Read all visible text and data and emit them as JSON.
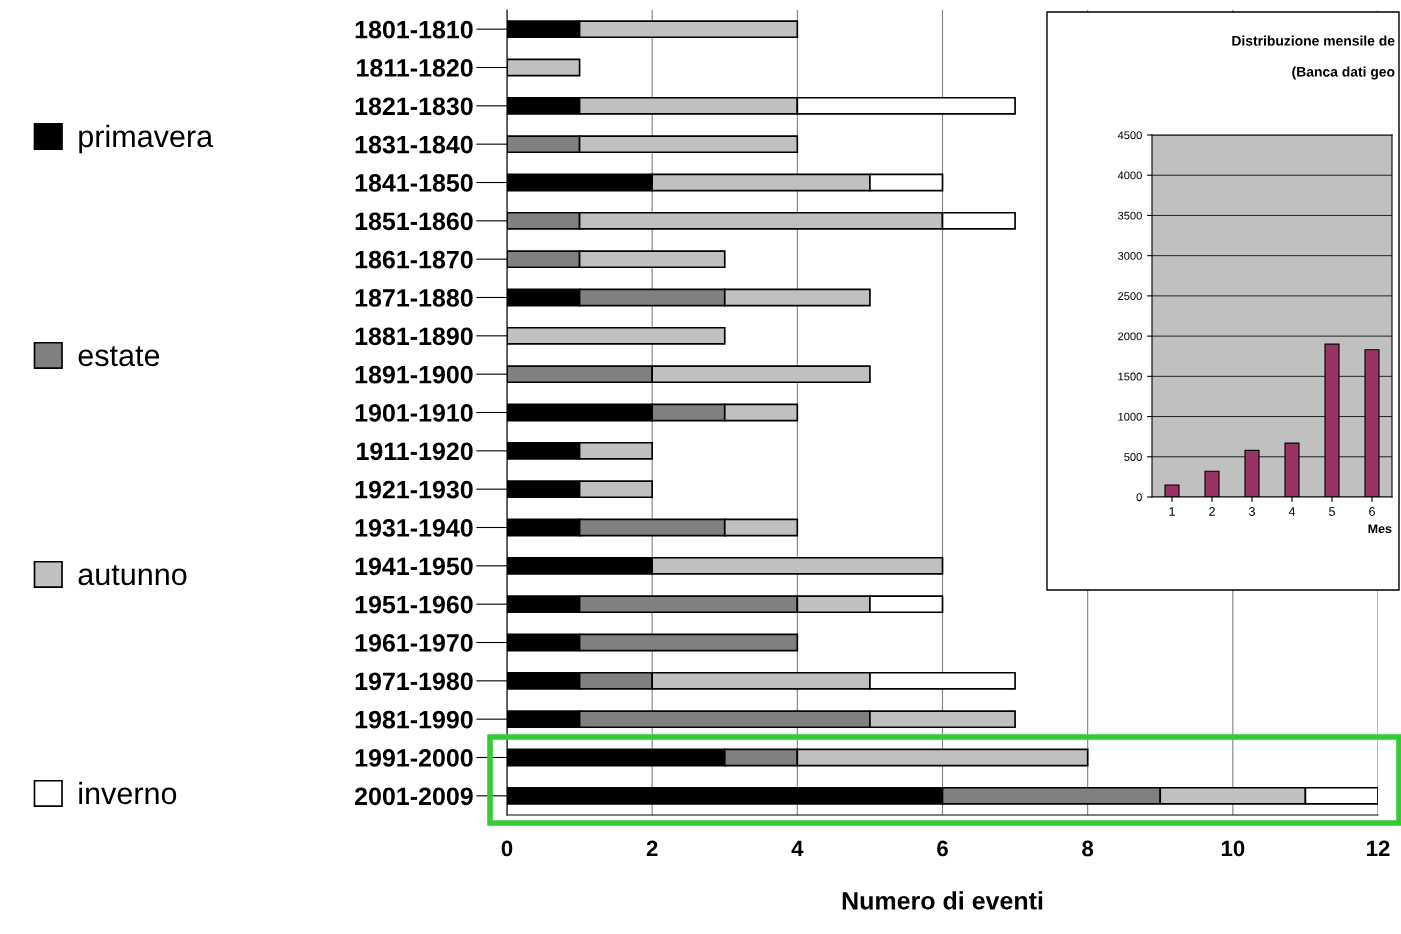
{
  "chart_data": [
    {
      "type": "bar",
      "orientation": "horizontal",
      "stacked": true,
      "xlabel": "Numero di eventi",
      "categories": [
        "1801-1810",
        "1811-1820",
        "1821-1830",
        "1831-1840",
        "1841-1850",
        "1851-1860",
        "1861-1870",
        "1871-1880",
        "1881-1890",
        "1891-1900",
        "1901-1910",
        "1911-1920",
        "1921-1930",
        "1931-1940",
        "1941-1950",
        "1951-1960",
        "1961-1970",
        "1971-1980",
        "1981-1990",
        "1991-2000",
        "2001-2009"
      ],
      "series": [
        {
          "name": "primavera",
          "color": "#000000",
          "values": [
            1,
            0,
            1,
            0,
            2,
            0,
            0,
            1,
            0,
            0,
            2,
            1,
            1,
            1,
            2,
            1,
            1,
            1,
            1,
            3,
            6
          ]
        },
        {
          "name": "estate",
          "color": "#808080",
          "values": [
            0,
            0,
            0,
            1,
            0,
            1,
            1,
            2,
            0,
            2,
            1,
            0,
            0,
            2,
            0,
            3,
            3,
            1,
            4,
            1,
            3
          ]
        },
        {
          "name": "autunno",
          "color": "#c0c0c0",
          "values": [
            3,
            1,
            3,
            3,
            3,
            5,
            2,
            2,
            3,
            3,
            1,
            1,
            1,
            1,
            4,
            1,
            0,
            3,
            2,
            4,
            2
          ]
        },
        {
          "name": "inverno",
          "color": "#ffffff",
          "values": [
            0,
            0,
            3,
            0,
            1,
            1,
            0,
            0,
            0,
            0,
            0,
            0,
            0,
            0,
            0,
            1,
            0,
            2,
            0,
            0,
            1
          ]
        }
      ],
      "xlim": [
        0,
        12
      ],
      "xticks": [
        0,
        2,
        4,
        6,
        8,
        10,
        12
      ],
      "grid": "x",
      "legend": "left"
    },
    {
      "type": "bar",
      "title": "Distribuzione mensile de",
      "subtitle": "(Banca dati geo",
      "xlabel": "Mes",
      "categories": [
        "1",
        "2",
        "3",
        "4",
        "5",
        "6"
      ],
      "values": [
        150,
        320,
        580,
        670,
        1900,
        1830
      ],
      "color": "#993366",
      "ylim": [
        0,
        4500
      ],
      "yticks": [
        0,
        500,
        1000,
        1500,
        2000,
        2500,
        3000,
        3500,
        4000,
        4500
      ],
      "grid": "y"
    }
  ]
}
